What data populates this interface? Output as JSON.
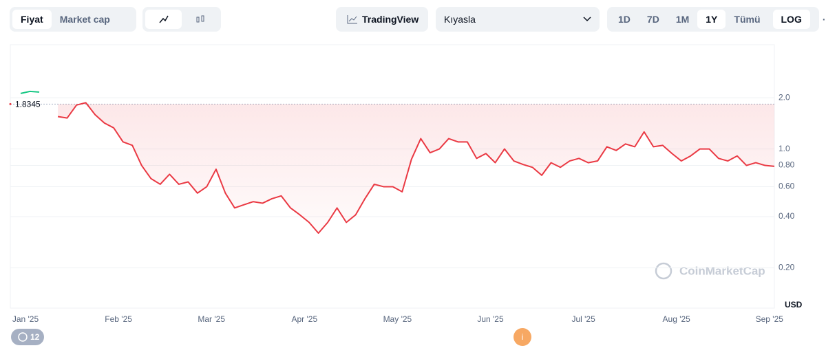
{
  "toolbar": {
    "price": "Fiyat",
    "market_cap": "Market cap",
    "tradingview": "TradingView",
    "compare": "Kıyasla",
    "ranges": [
      "1D",
      "7D",
      "1M",
      "1Y",
      "Tümü"
    ],
    "log": "LOG",
    "more": "···"
  },
  "footer": {
    "badge": "12"
  },
  "chart_data": {
    "type": "line",
    "watermark": "CoinMarketCap",
    "y_unit": "USD",
    "log_scale": true,
    "reference": 1.8345,
    "x_labels": [
      "Jan '25",
      "Feb '25",
      "Mar '25",
      "Apr '25",
      "May '25",
      "Jun '25",
      "Jul '25",
      "Aug '25",
      "Sep '25"
    ],
    "ylim": [
      0.116,
      4.1
    ],
    "yticks": [
      {
        "value": 0.2,
        "label": "0.20"
      },
      {
        "value": 0.4,
        "label": "0.40"
      },
      {
        "value": 0.6,
        "label": "0.60"
      },
      {
        "value": 0.8,
        "label": "0.80"
      },
      {
        "value": 1,
        "label": "1.0"
      },
      {
        "value": 2,
        "label": "2.0"
      }
    ],
    "series": [
      {
        "color": "#ea3943",
        "above_color": "#16c784",
        "values": [
          2.12,
          2.18,
          2.16,
          null,
          1.55,
          1.52,
          1.81,
          1.87,
          1.59,
          1.42,
          1.33,
          1.1,
          1.05,
          0.8,
          0.67,
          0.62,
          0.71,
          0.62,
          0.64,
          0.55,
          0.6,
          0.76,
          0.55,
          0.45,
          0.47,
          0.49,
          0.48,
          0.51,
          0.53,
          0.45,
          0.41,
          0.37,
          0.32,
          0.37,
          0.45,
          0.37,
          0.41,
          0.51,
          0.62,
          0.6,
          0.6,
          0.56,
          0.87,
          1.15,
          0.95,
          1.0,
          1.15,
          1.1,
          1.1,
          0.88,
          0.94,
          0.83,
          1.0,
          0.85,
          0.81,
          0.78,
          0.7,
          0.83,
          0.78,
          0.85,
          0.88,
          0.83,
          0.85,
          1.03,
          0.98,
          1.07,
          1.03,
          1.26,
          1.03,
          1.05,
          0.94,
          0.85,
          0.91,
          1.0,
          1.0,
          0.88,
          0.85,
          0.91,
          0.8,
          0.83,
          0.8,
          0.79
        ]
      }
    ]
  }
}
